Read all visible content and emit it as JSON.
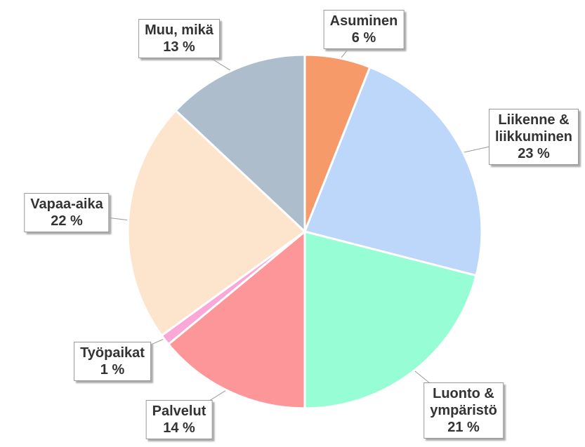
{
  "chart_data": {
    "type": "pie",
    "categories": [
      "Asuminen",
      "Liikenne &\nliikkuminen",
      "Luonto &\nympäristö",
      "Palvelut",
      "Työpaikat",
      "Vapaa-aika",
      "Muu, mikä"
    ],
    "values": [
      6,
      23,
      21,
      14,
      1,
      22,
      13
    ],
    "value_labels": [
      "6 %",
      "23 %",
      "21 %",
      "14 %",
      "1 %",
      "22 %",
      "13 %"
    ],
    "colors": [
      "#f79a6a",
      "#bdd7fb",
      "#97fdd5",
      "#fc9698",
      "#f9a8d8",
      "#fde4cc",
      "#adbdcb"
    ]
  }
}
